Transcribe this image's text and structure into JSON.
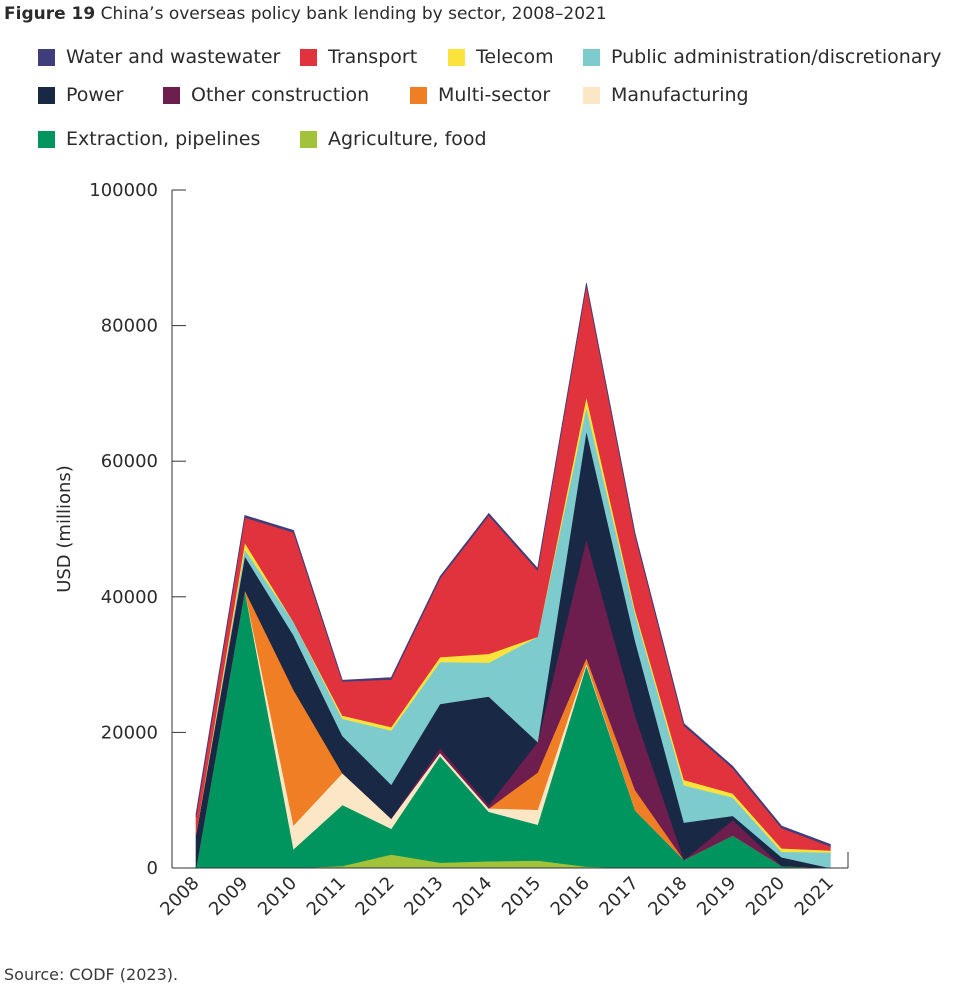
{
  "figure": {
    "label": "Figure 19",
    "title": "China’s overseas policy bank lending by sector, 2008–2021",
    "source": "Source: CODF (2023)."
  },
  "chart_data": {
    "type": "area",
    "stacked": true,
    "x": [
      "2008",
      "2009",
      "2010",
      "2011",
      "2012",
      "2013",
      "2014",
      "2015",
      "2016",
      "2017",
      "2018",
      "2019",
      "2020",
      "2021"
    ],
    "ylabel": "USD (millions)",
    "xlabel": "",
    "ylim": [
      0,
      100000
    ],
    "yticks": [
      0,
      20000,
      40000,
      60000,
      80000,
      100000
    ],
    "grid": false,
    "legend_placement": "top",
    "series": [
      {
        "name": "Agriculture, food",
        "color": "#a2c23a",
        "values": [
          0,
          0,
          0,
          300,
          2000,
          800,
          1000,
          1100,
          200,
          0,
          0,
          0,
          0,
          0
        ]
      },
      {
        "name": "Extraction, pipelines",
        "color": "#00945e",
        "values": [
          0,
          41000,
          2800,
          9000,
          3800,
          15700,
          7300,
          5300,
          29700,
          8500,
          1200,
          4800,
          300,
          0
        ]
      },
      {
        "name": "Manufacturing",
        "color": "#fbe7c6",
        "values": [
          0,
          0,
          3500,
          4700,
          1500,
          500,
          500,
          2200,
          300,
          0,
          0,
          0,
          0,
          0
        ]
      },
      {
        "name": "Multi-sector",
        "color": "#ef7e24",
        "values": [
          0,
          0,
          20000,
          0,
          0,
          0,
          0,
          5500,
          800,
          3000,
          0,
          0,
          0,
          0
        ]
      },
      {
        "name": "Other construction",
        "color": "#6d1e4f",
        "values": [
          0,
          0,
          0,
          0,
          0,
          700,
          500,
          4500,
          17500,
          11000,
          0,
          2300,
          0,
          0
        ]
      },
      {
        "name": "Power",
        "color": "#192844",
        "values": [
          5000,
          5000,
          8000,
          5500,
          5000,
          6500,
          16000,
          0,
          16000,
          11000,
          5500,
          600,
          1300,
          0
        ]
      },
      {
        "name": "Public administration/discretionary",
        "color": "#7ecbce",
        "values": [
          0,
          1000,
          2000,
          2500,
          8000,
          6200,
          5000,
          15500,
          3500,
          4000,
          5500,
          2700,
          800,
          2300
        ]
      },
      {
        "name": "Telecom",
        "color": "#fbe33b",
        "values": [
          0,
          1000,
          0,
          500,
          500,
          700,
          1300,
          0,
          1500,
          500,
          800,
          600,
          500,
          300
        ]
      },
      {
        "name": "Transport",
        "color": "#e1333d",
        "values": [
          2500,
          3700,
          13200,
          5000,
          7000,
          11600,
          20400,
          9800,
          16500,
          11000,
          8000,
          3700,
          3000,
          600
        ]
      },
      {
        "name": "Water and wastewater",
        "color": "#3f3d7a",
        "values": [
          500,
          300,
          300,
          200,
          300,
          300,
          300,
          300,
          300,
          300,
          300,
          300,
          300,
          300
        ]
      }
    ],
    "legend": {
      "rows": [
        [
          "Water and wastewater",
          "Transport",
          "Telecom",
          "Public administration/discretionary"
        ],
        [
          "Power",
          "Other construction",
          "Multi-sector",
          "Manufacturing"
        ],
        [
          "Extraction, pipelines",
          "Agriculture, food"
        ]
      ]
    }
  }
}
